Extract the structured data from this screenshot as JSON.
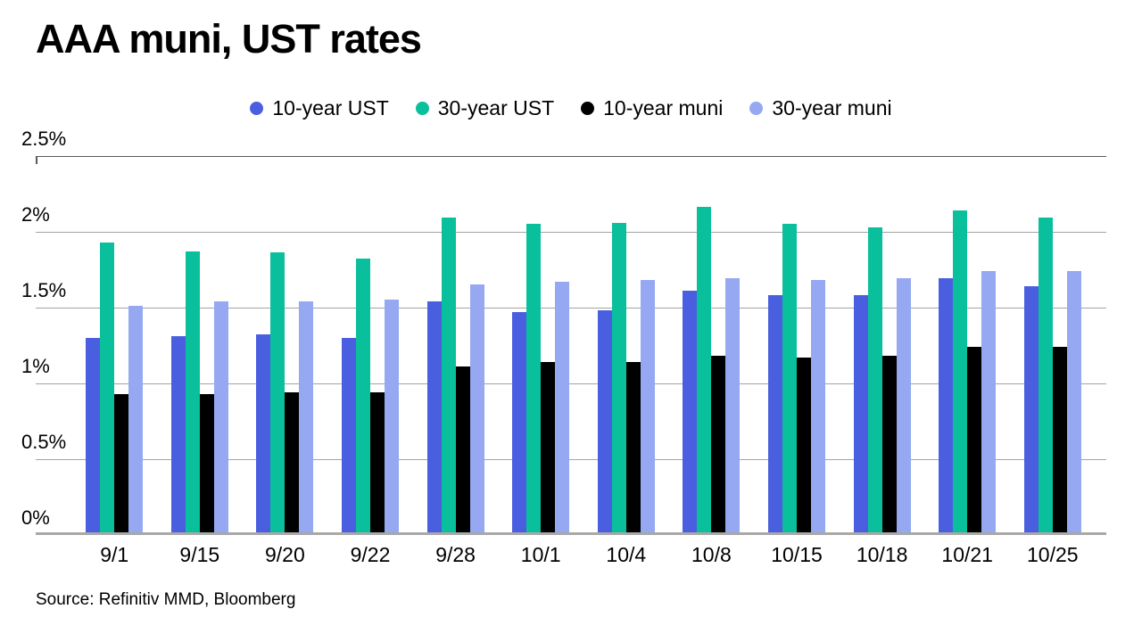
{
  "title": "AAA muni, UST rates",
  "source": "Source: Refinitiv MMD, Bloomberg",
  "colors": {
    "background": "#ffffff",
    "grid": "#a3a3a3",
    "grid_top": "#5a5a5a",
    "axis": "#a8a8a8",
    "text": "#000000"
  },
  "chart_data": {
    "type": "bar",
    "title": "AAA muni, UST rates",
    "xlabel": "",
    "ylabel": "",
    "ylim": [
      0,
      2.5
    ],
    "grid": true,
    "legend_position": "top",
    "categories": [
      "9/1",
      "9/15",
      "9/20",
      "9/22",
      "9/28",
      "10/1",
      "10/4",
      "10/8",
      "10/15",
      "10/18",
      "10/21",
      "10/25"
    ],
    "yticks": [
      {
        "value": 0,
        "label": "0%"
      },
      {
        "value": 0.5,
        "label": "0.5%"
      },
      {
        "value": 1,
        "label": "1%"
      },
      {
        "value": 1.5,
        "label": "1.5%"
      },
      {
        "value": 2,
        "label": "2%"
      },
      {
        "value": 2.5,
        "label": "2.5%"
      }
    ],
    "series": [
      {
        "name": "10-year UST",
        "color": "#4a5fe0",
        "values": [
          1.29,
          1.3,
          1.31,
          1.29,
          1.53,
          1.46,
          1.47,
          1.6,
          1.57,
          1.57,
          1.68,
          1.63
        ]
      },
      {
        "name": "30-year UST",
        "color": "#0abf9b",
        "values": [
          1.92,
          1.86,
          1.85,
          1.81,
          2.08,
          2.04,
          2.05,
          2.15,
          2.04,
          2.02,
          2.13,
          2.08
        ]
      },
      {
        "name": "10-year muni",
        "color": "#000000",
        "values": [
          0.92,
          0.92,
          0.93,
          0.93,
          1.1,
          1.13,
          1.13,
          1.17,
          1.16,
          1.17,
          1.23,
          1.23
        ]
      },
      {
        "name": "30-year muni",
        "color": "#96a8f2",
        "values": [
          1.5,
          1.53,
          1.53,
          1.54,
          1.64,
          1.66,
          1.67,
          1.68,
          1.67,
          1.68,
          1.73,
          1.73
        ]
      }
    ]
  }
}
